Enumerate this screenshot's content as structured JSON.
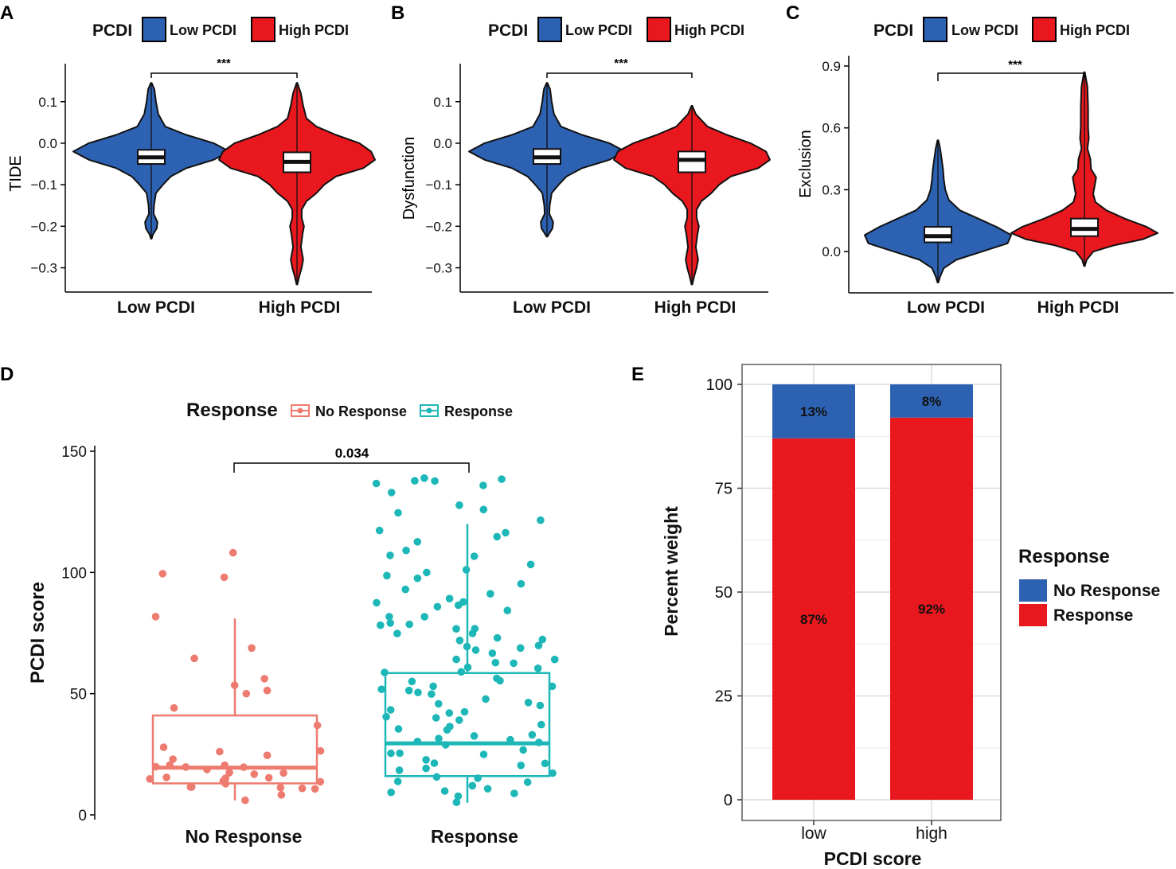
{
  "colors": {
    "low_pcdi": "#2d62b3",
    "high_pcdi": "#e8181e",
    "no_response_d": "#ee7b70",
    "response_d": "#1eb7b8",
    "no_response_e": "#2d62b3",
    "response_e": "#e8181e"
  },
  "chart_data": [
    {
      "panel": "A",
      "type": "violin",
      "legend": {
        "title": "PCDI",
        "items": [
          "Low PCDI",
          "High PCDI"
        ]
      },
      "ylabel": "TIDE",
      "categories": [
        "Low PCDI",
        "High PCDI"
      ],
      "yticks": [
        "0.1",
        "0.0",
        "−0.1",
        "−0.2",
        "−0.3"
      ],
      "ytick_values": [
        0.1,
        0.0,
        -0.1,
        -0.2,
        -0.3
      ],
      "ylim": [
        -0.345,
        0.18
      ],
      "significance": "***",
      "boxes": [
        {
          "q1": -0.05,
          "median": -0.034,
          "q3": -0.016,
          "min": -0.23,
          "max": 0.145
        },
        {
          "q1": -0.07,
          "median": -0.045,
          "q3": -0.022,
          "min": -0.34,
          "max": 0.145
        }
      ],
      "density": [
        [
          [
            0.145,
            0.005
          ],
          [
            0.13,
            0.04
          ],
          [
            0.1,
            0.06
          ],
          [
            0.07,
            0.09
          ],
          [
            0.04,
            0.18
          ],
          [
            0.02,
            0.45
          ],
          [
            0.0,
            0.8
          ],
          [
            -0.02,
            1.0
          ],
          [
            -0.04,
            0.8
          ],
          [
            -0.06,
            0.45
          ],
          [
            -0.08,
            0.25
          ],
          [
            -0.1,
            0.15
          ],
          [
            -0.12,
            0.06
          ],
          [
            -0.15,
            0.035
          ],
          [
            -0.17,
            0.03
          ],
          [
            -0.19,
            0.08
          ],
          [
            -0.205,
            0.07
          ],
          [
            -0.22,
            0.02
          ],
          [
            -0.23,
            0.005
          ]
        ],
        [
          [
            0.145,
            0.005
          ],
          [
            0.12,
            0.05
          ],
          [
            0.09,
            0.08
          ],
          [
            0.06,
            0.12
          ],
          [
            0.04,
            0.25
          ],
          [
            0.02,
            0.5
          ],
          [
            0.0,
            0.8
          ],
          [
            -0.02,
            0.95
          ],
          [
            -0.04,
            1.0
          ],
          [
            -0.06,
            0.85
          ],
          [
            -0.08,
            0.5
          ],
          [
            -0.1,
            0.35
          ],
          [
            -0.12,
            0.25
          ],
          [
            -0.14,
            0.12
          ],
          [
            -0.16,
            0.06
          ],
          [
            -0.18,
            0.06
          ],
          [
            -0.2,
            0.09
          ],
          [
            -0.22,
            0.07
          ],
          [
            -0.25,
            0.05
          ],
          [
            -0.28,
            0.08
          ],
          [
            -0.3,
            0.06
          ],
          [
            -0.32,
            0.03
          ],
          [
            -0.34,
            0.005
          ]
        ]
      ]
    },
    {
      "panel": "B",
      "type": "violin",
      "legend": {
        "title": "PCDI",
        "items": [
          "Low PCDI",
          "High PCDI"
        ]
      },
      "ylabel": "Dysfunction",
      "categories": [
        "Low PCDI",
        "High PCDI"
      ],
      "yticks": [
        "0.1",
        "0.0",
        "−0.1",
        "−0.2",
        "−0.3"
      ],
      "ytick_values": [
        0.1,
        0.0,
        -0.1,
        -0.2,
        -0.3
      ],
      "ylim": [
        -0.345,
        0.18
      ],
      "significance": "***",
      "boxes": [
        {
          "q1": -0.05,
          "median": -0.034,
          "q3": -0.014,
          "min": -0.225,
          "max": 0.145
        },
        {
          "q1": -0.07,
          "median": -0.04,
          "q3": -0.02,
          "min": -0.34,
          "max": 0.09
        }
      ],
      "density": [
        [
          [
            0.145,
            0.005
          ],
          [
            0.13,
            0.04
          ],
          [
            0.1,
            0.06
          ],
          [
            0.07,
            0.09
          ],
          [
            0.04,
            0.18
          ],
          [
            0.02,
            0.45
          ],
          [
            0.0,
            0.8
          ],
          [
            -0.02,
            1.0
          ],
          [
            -0.04,
            0.8
          ],
          [
            -0.06,
            0.45
          ],
          [
            -0.08,
            0.25
          ],
          [
            -0.1,
            0.15
          ],
          [
            -0.12,
            0.06
          ],
          [
            -0.15,
            0.035
          ],
          [
            -0.17,
            0.03
          ],
          [
            -0.19,
            0.08
          ],
          [
            -0.205,
            0.07
          ],
          [
            -0.22,
            0.02
          ],
          [
            -0.225,
            0.005
          ]
        ],
        [
          [
            0.09,
            0.005
          ],
          [
            0.07,
            0.05
          ],
          [
            0.04,
            0.2
          ],
          [
            0.02,
            0.45
          ],
          [
            0.0,
            0.75
          ],
          [
            -0.02,
            0.95
          ],
          [
            -0.04,
            1.0
          ],
          [
            -0.06,
            0.85
          ],
          [
            -0.08,
            0.5
          ],
          [
            -0.1,
            0.35
          ],
          [
            -0.12,
            0.25
          ],
          [
            -0.14,
            0.12
          ],
          [
            -0.16,
            0.06
          ],
          [
            -0.18,
            0.06
          ],
          [
            -0.2,
            0.09
          ],
          [
            -0.22,
            0.07
          ],
          [
            -0.25,
            0.05
          ],
          [
            -0.28,
            0.08
          ],
          [
            -0.3,
            0.06
          ],
          [
            -0.32,
            0.03
          ],
          [
            -0.34,
            0.005
          ]
        ]
      ]
    },
    {
      "panel": "C",
      "type": "violin",
      "legend": {
        "title": "PCDI",
        "items": [
          "Low PCDI",
          "High PCDI"
        ]
      },
      "ylabel": "Exclusion",
      "categories": [
        "Low PCDI",
        "High PCDI"
      ],
      "yticks": [
        "0.9",
        "0.6",
        "0.3",
        "0.0"
      ],
      "ytick_values": [
        0.9,
        0.6,
        0.3,
        0.0
      ],
      "ylim": [
        -0.2,
        0.95
      ],
      "significance": "***",
      "boxes": [
        {
          "q1": 0.045,
          "median": 0.075,
          "q3": 0.12,
          "min": -0.15,
          "max": 0.54
        },
        {
          "q1": 0.075,
          "median": 0.11,
          "q3": 0.16,
          "min": -0.07,
          "max": 0.87
        }
      ],
      "density": [
        [
          [
            0.54,
            0.005
          ],
          [
            0.5,
            0.03
          ],
          [
            0.45,
            0.05
          ],
          [
            0.4,
            0.07
          ],
          [
            0.35,
            0.08
          ],
          [
            0.3,
            0.1
          ],
          [
            0.25,
            0.15
          ],
          [
            0.2,
            0.3
          ],
          [
            0.16,
            0.55
          ],
          [
            0.12,
            0.8
          ],
          [
            0.08,
            1.0
          ],
          [
            0.04,
            0.95
          ],
          [
            0.0,
            0.6
          ],
          [
            -0.04,
            0.25
          ],
          [
            -0.08,
            0.08
          ],
          [
            -0.12,
            0.03
          ],
          [
            -0.15,
            0.005
          ]
        ],
        [
          [
            0.87,
            0.005
          ],
          [
            0.8,
            0.04
          ],
          [
            0.7,
            0.05
          ],
          [
            0.6,
            0.05
          ],
          [
            0.55,
            0.06
          ],
          [
            0.5,
            0.04
          ],
          [
            0.45,
            0.08
          ],
          [
            0.4,
            0.09
          ],
          [
            0.36,
            0.16
          ],
          [
            0.32,
            0.14
          ],
          [
            0.28,
            0.12
          ],
          [
            0.24,
            0.15
          ],
          [
            0.2,
            0.3
          ],
          [
            0.16,
            0.55
          ],
          [
            0.12,
            0.85
          ],
          [
            0.09,
            1.0
          ],
          [
            0.06,
            0.8
          ],
          [
            0.03,
            0.4
          ],
          [
            0.0,
            0.12
          ],
          [
            -0.04,
            0.03
          ],
          [
            -0.07,
            0.005
          ]
        ]
      ]
    },
    {
      "panel": "D",
      "type": "boxplot+jitter",
      "legend": {
        "title": "Response",
        "items": [
          "No Response",
          "Response"
        ]
      },
      "ylabel": "PCDI score",
      "xlabel": "",
      "categories": [
        "No Response",
        "Response"
      ],
      "yticks": [
        "150",
        "100",
        "50",
        "0"
      ],
      "ytick_values": [
        150,
        100,
        50,
        0
      ],
      "ylim": [
        -2,
        152
      ],
      "significance": "0.034",
      "boxes": [
        {
          "q1": 13,
          "median": 19.5,
          "q3": 41,
          "min": 6,
          "max": 81
        },
        {
          "q1": 16,
          "median": 29.5,
          "q3": 58.5,
          "min": 5,
          "max": 120
        }
      ],
      "points": [
        [
          108,
          100,
          98,
          81,
          69,
          64,
          57,
          54,
          52,
          50,
          45,
          36,
          28,
          27,
          26,
          25,
          22,
          21,
          20,
          20,
          19,
          19,
          19,
          18,
          17,
          17,
          16,
          16,
          15,
          15,
          14,
          14,
          13,
          13,
          12,
          12,
          11,
          10,
          10,
          8,
          7
        ],
        [
          138,
          138,
          138,
          138,
          137,
          136,
          132,
          127,
          126,
          124,
          122,
          118,
          116,
          114,
          112,
          110,
          108,
          106,
          104,
          102,
          100,
          99,
          98,
          96,
          94,
          92,
          90,
          88,
          87,
          86,
          85,
          84,
          82,
          81,
          80,
          79,
          78,
          77,
          76,
          75,
          74,
          73,
          72,
          71,
          70,
          69,
          68,
          67,
          66,
          65,
          64,
          63,
          62,
          61,
          60,
          59,
          58,
          57,
          56,
          55,
          54,
          53,
          52,
          51,
          50,
          49,
          48,
          47,
          46,
          45,
          44,
          43,
          42,
          41,
          40,
          39,
          38,
          37,
          36,
          35,
          34,
          33,
          32,
          31,
          30,
          29,
          28,
          27,
          26,
          25,
          24,
          23,
          22,
          21,
          20,
          19,
          18,
          17,
          16,
          15,
          14,
          13,
          12,
          11,
          10,
          9,
          8,
          7,
          6
        ]
      ]
    },
    {
      "panel": "E",
      "type": "bar",
      "stacked": true,
      "title": "",
      "xlabel": "PCDI score",
      "ylabel": "Percent weight",
      "categories": [
        "low",
        "high"
      ],
      "yticks": [
        "100",
        "75",
        "50",
        "25",
        "0"
      ],
      "ytick_values": [
        100,
        75,
        50,
        25,
        0
      ],
      "ylim": [
        -4.5,
        104.5
      ],
      "legend": {
        "title": "Response",
        "items": [
          "No Response",
          "Response"
        ]
      },
      "series": [
        {
          "name": "Response",
          "values": [
            87,
            92
          ],
          "labels": [
            "87%",
            "92%"
          ]
        },
        {
          "name": "No Response",
          "values": [
            13,
            8
          ],
          "labels": [
            "13%",
            "8%"
          ]
        }
      ]
    }
  ]
}
